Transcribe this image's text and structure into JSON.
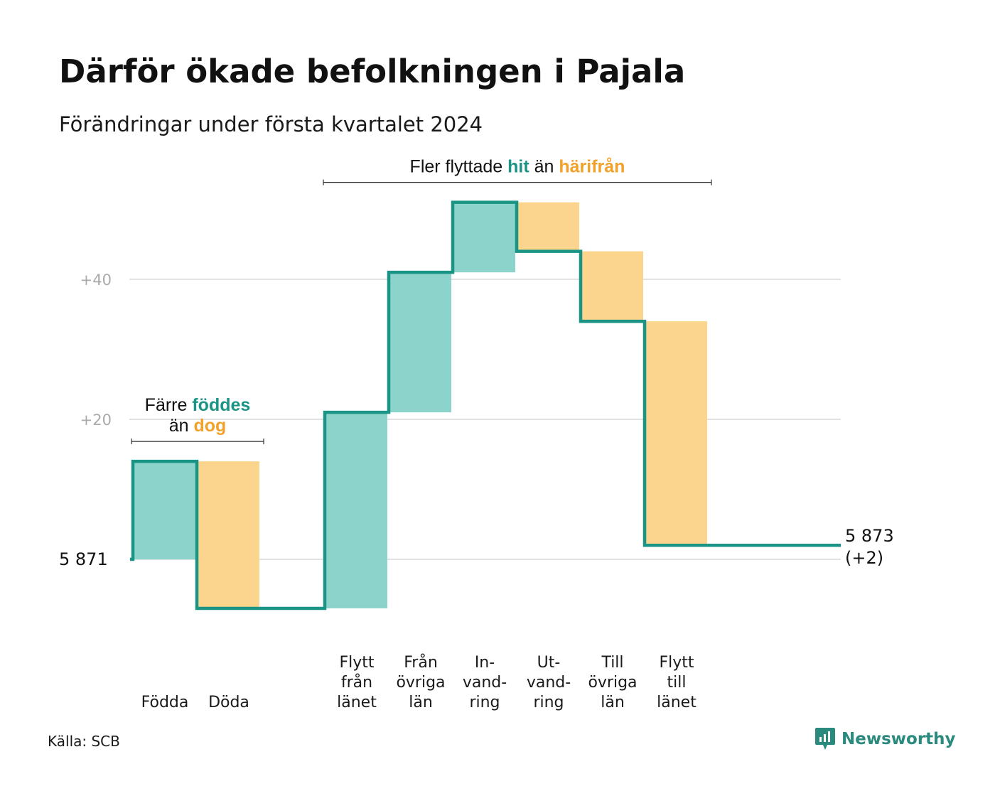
{
  "title": "Därför ökade befolkningen i Pajala",
  "subtitle": "Förändringar under första kvartalet 2024",
  "source": "Källa: SCB",
  "logo": {
    "name": "Newsworthy",
    "icon": "newsworthy-logo-icon"
  },
  "colors": {
    "increase": "#8cd3cb",
    "decrease": "#fbd58d",
    "line": "#1a9484",
    "increase_text": "#1a9484",
    "decrease_text": "#f2a12a",
    "grid": "#e2e2e2"
  },
  "chart_data": {
    "type": "waterfall",
    "start_value": 5871,
    "start_label": "5  871",
    "end_value": 5873,
    "end_label_value": "5 873",
    "end_label_change": "(+2)",
    "y_ticks": [
      {
        "value": 20,
        "label": "+20"
      },
      {
        "value": 40,
        "label": "+40"
      }
    ],
    "ylim": [
      -7,
      51
    ],
    "grid": true,
    "steps": [
      {
        "label": [
          "Födda"
        ],
        "change": 14,
        "kind": "increase"
      },
      {
        "label": [
          "Döda"
        ],
        "change": -21,
        "kind": "decrease"
      },
      {
        "label": [],
        "change": 0,
        "kind": "gap"
      },
      {
        "label": [
          "Flytt",
          "från",
          "länet"
        ],
        "change": 28,
        "kind": "increase"
      },
      {
        "label": [
          "Från",
          "övriga",
          "län"
        ],
        "change": 20,
        "kind": "increase"
      },
      {
        "label": [
          "In-",
          "vand-",
          "ring"
        ],
        "change": 10,
        "kind": "increase"
      },
      {
        "label": [
          "Ut-",
          "vand-",
          "ring"
        ],
        "change": -7,
        "kind": "decrease"
      },
      {
        "label": [
          "Till",
          "övriga",
          "län"
        ],
        "change": -10,
        "kind": "decrease"
      },
      {
        "label": [
          "Flytt",
          "till",
          "länet"
        ],
        "change": -32,
        "kind": "decrease"
      }
    ],
    "annotations": [
      {
        "lines": [
          [
            {
              "t": "Färre ",
              "s": "plain"
            },
            {
              "t": "föddes",
              "s": "increase"
            }
          ],
          [
            {
              "t": "än ",
              "s": "plain"
            },
            {
              "t": "dog",
              "s": "decrease"
            }
          ]
        ],
        "from_step": 0,
        "to_step": 1
      },
      {
        "lines": [
          [
            {
              "t": "Fler flyttade ",
              "s": "plain"
            },
            {
              "t": "hit",
              "s": "increase"
            },
            {
              "t": "  än ",
              "s": "plain"
            },
            {
              "t": "härifrån",
              "s": "decrease"
            }
          ]
        ],
        "from_step": 3,
        "to_step": 8
      }
    ]
  }
}
